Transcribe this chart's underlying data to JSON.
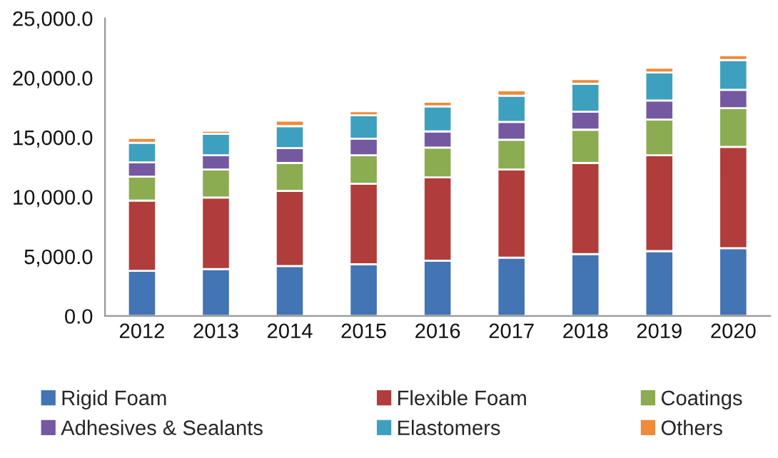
{
  "chart_data": {
    "type": "bar",
    "stacked": true,
    "categories": [
      "2012",
      "2013",
      "2014",
      "2015",
      "2016",
      "2017",
      "2018",
      "2019",
      "2020"
    ],
    "series": [
      {
        "name": "Rigid Foam",
        "color": "#4374b3",
        "values": [
          3800,
          3950,
          4200,
          4350,
          4650,
          4900,
          5200,
          5450,
          5700
        ]
      },
      {
        "name": "Flexible Foam",
        "color": "#b03d3b",
        "values": [
          5900,
          6000,
          6300,
          6750,
          7000,
          7400,
          7650,
          8050,
          8500
        ]
      },
      {
        "name": "Coatings",
        "color": "#8bac51",
        "values": [
          2000,
          2350,
          2350,
          2400,
          2500,
          2500,
          2800,
          3000,
          3250
        ]
      },
      {
        "name": "Adhesives & Sealants",
        "color": "#7559a0",
        "values": [
          1200,
          1200,
          1250,
          1400,
          1350,
          1500,
          1500,
          1600,
          1550
        ]
      },
      {
        "name": "Elastomers",
        "color": "#3ea0bf",
        "values": [
          1650,
          1800,
          1850,
          1950,
          2100,
          2200,
          2350,
          2350,
          2500
        ]
      },
      {
        "name": "Others",
        "color": "#ef8b3a",
        "values": [
          400,
          250,
          450,
          350,
          400,
          450,
          400,
          400,
          400
        ]
      }
    ],
    "ylim": [
      0,
      25000
    ],
    "yticks": [
      {
        "value": 0,
        "label": "0.0"
      },
      {
        "value": 5000,
        "label": "5,000.0"
      },
      {
        "value": 10000,
        "label": "10,000.0"
      },
      {
        "value": 15000,
        "label": "15,000.0"
      },
      {
        "value": 20000,
        "label": "20,000.0"
      },
      {
        "value": 25000,
        "label": "25,000.0"
      }
    ],
    "grid": false,
    "legend": "bottom"
  }
}
